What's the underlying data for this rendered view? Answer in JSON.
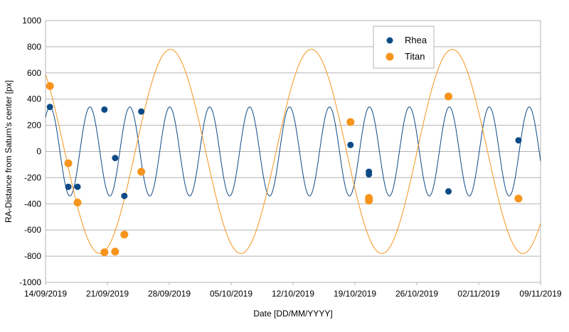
{
  "chart_data": {
    "type": "scatter",
    "xlabel": "Date [DD/MM/YYYY]",
    "ylabel": "RA-Distance from Saturn's center [px]",
    "ylim": [
      -1000,
      1000
    ],
    "yticks": [
      -1000,
      -800,
      -600,
      -400,
      -200,
      0,
      200,
      400,
      600,
      800,
      1000
    ],
    "xlim": [
      "2019-09-14",
      "2019-11-09"
    ],
    "xticks": [
      "14/09/2019",
      "21/09/2019",
      "28/09/2019",
      "05/10/2019",
      "12/10/2019",
      "19/10/2019",
      "26/10/2019",
      "02/11/2019",
      "09/11/2019"
    ],
    "grid": "horizontal",
    "legend_position": "top-center",
    "series": [
      {
        "name": "Rhea",
        "color": "#0d4a86",
        "fit": {
          "amplitude": 340,
          "period_days": 4.518,
          "phase_peak": "2019-09-14T12:00"
        },
        "points": [
          {
            "x": "2019-09-14T12:00",
            "y": 340
          },
          {
            "x": "2019-09-16T14:00",
            "y": -270
          },
          {
            "x": "2019-09-17T15:00",
            "y": -270
          },
          {
            "x": "2019-09-20T16:00",
            "y": 320
          },
          {
            "x": "2019-09-21T21:00",
            "y": -50
          },
          {
            "x": "2019-09-22T22:00",
            "y": -340
          },
          {
            "x": "2019-09-24T20:00",
            "y": 305
          },
          {
            "x": "2019-10-18T12:00",
            "y": 50
          },
          {
            "x": "2019-10-20T14:00",
            "y": -155
          },
          {
            "x": "2019-10-20T14:00",
            "y": -175
          },
          {
            "x": "2019-10-29T14:00",
            "y": -305
          },
          {
            "x": "2019-11-06T12:00",
            "y": 85
          }
        ]
      },
      {
        "name": "Titan",
        "color": "#f7941d",
        "fit": {
          "amplitude": 780,
          "period_days": 15.945,
          "center": 0
        },
        "points": [
          {
            "x": "2019-09-14T12:00",
            "y": 500
          },
          {
            "x": "2019-09-16T14:00",
            "y": -90
          },
          {
            "x": "2019-09-17T15:00",
            "y": -390
          },
          {
            "x": "2019-09-20T16:00",
            "y": -770
          },
          {
            "x": "2019-09-21T21:00",
            "y": -765
          },
          {
            "x": "2019-09-22T22:00",
            "y": -635
          },
          {
            "x": "2019-09-24T20:00",
            "y": -155
          },
          {
            "x": "2019-10-18T12:00",
            "y": 225
          },
          {
            "x": "2019-10-20T14:00",
            "y": -355
          },
          {
            "x": "2019-10-20T14:00",
            "y": -375
          },
          {
            "x": "2019-10-29T14:00",
            "y": 420
          },
          {
            "x": "2019-11-06T12:00",
            "y": -360
          }
        ]
      }
    ]
  }
}
